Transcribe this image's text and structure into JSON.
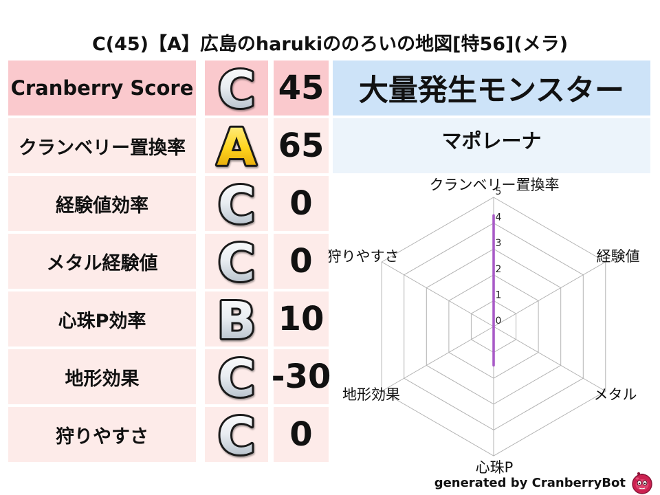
{
  "title": "C(45)【A】広島のharukiののろいの地図[特56](メラ)",
  "score_table": {
    "rows": [
      {
        "label": "Cranberry Score",
        "grade": "C",
        "value": "45"
      },
      {
        "label": "クランベリー置換率",
        "grade": "A",
        "value": "65"
      },
      {
        "label": "経験値効率",
        "grade": "C",
        "value": "0"
      },
      {
        "label": "メタル経験値",
        "grade": "C",
        "value": "0"
      },
      {
        "label": "心珠P効率",
        "grade": "B",
        "value": "10"
      },
      {
        "label": "地形効果",
        "grade": "C",
        "value": "-30"
      },
      {
        "label": "狩りやすさ",
        "grade": "C",
        "value": "0"
      }
    ]
  },
  "monster_panel": {
    "header": "大量発生モンスター",
    "name": "マポレーナ"
  },
  "footer": {
    "credit": "generated by CranberryBot",
    "icon": "cranberry-mascot-icon"
  },
  "colors": {
    "header_pink": "#fac9cd",
    "row_pink": "#fdebe9",
    "header_blue": "#cde3f8",
    "row_blue": "#ecf4fb",
    "grid_gray": "#b3b3b3",
    "series_purple": "#a95bc7",
    "grade_gold": "#ffcc00",
    "grade_silver": "#d7dde3",
    "mascot_red": "#cb2150"
  },
  "chart_data": {
    "type": "radar",
    "categories": [
      "クランベリー置換率",
      "経験値",
      "メタル",
      "心珠P",
      "地形効果",
      "狩りやすさ"
    ],
    "values": [
      4.3,
      0,
      0,
      1.5,
      0,
      0
    ],
    "rlim": [
      0,
      5
    ],
    "tick_labels": [
      "0",
      "1",
      "2",
      "3",
      "4",
      "5"
    ],
    "rings": 5,
    "grid": true,
    "legend": "none",
    "line_color": "#a95bc7"
  }
}
